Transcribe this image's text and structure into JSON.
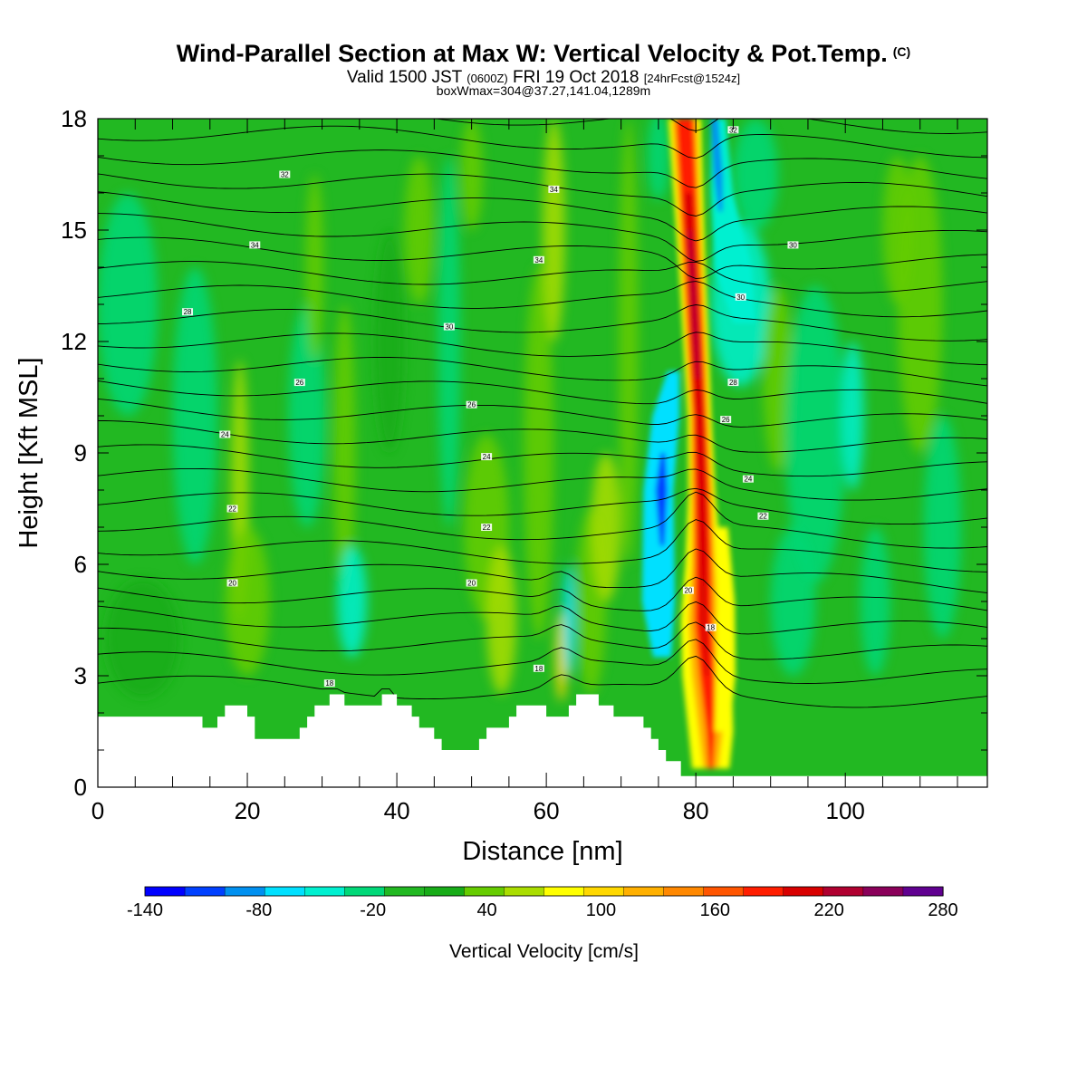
{
  "title": {
    "main": "Wind-Parallel Section at Max W: Vertical Velocity & Pot.Temp.",
    "copyright": "(C)",
    "valid_prefix": "Valid 1500 JST",
    "valid_utc": "(0600Z)",
    "valid_date": "FRI 19 Oct 2018",
    "forecast": "[24hrFcst@1524z]",
    "boxmax": "boxWmax=304@37.27,141.04,1289m"
  },
  "colorbar": {
    "label": "Vertical Velocity [cm/s]",
    "tick_labels": [
      "-140",
      "-80",
      "-20",
      "40",
      "100",
      "160",
      "220",
      "280"
    ],
    "levels": [
      -140,
      -120,
      -100,
      -80,
      -60,
      -40,
      -20,
      0,
      20,
      40,
      60,
      80,
      100,
      120,
      140,
      160,
      180,
      200,
      220,
      240,
      260,
      280
    ],
    "colors": [
      "#0000ff",
      "#0040ff",
      "#0090f0",
      "#00e0ff",
      "#00f0d0",
      "#00d878",
      "#22b822",
      "#18ac18",
      "#66cc00",
      "#aadd00",
      "#ffff00",
      "#ffd800",
      "#ffb000",
      "#ff8800",
      "#ff5500",
      "#ff1e00",
      "#d80000",
      "#b00030",
      "#8a005a",
      "#600090"
    ]
  },
  "chart_data": {
    "type": "heatmap",
    "xlabel": "Distance [nm]",
    "ylabel": "Height [Kft MSL]",
    "xlim": [
      0,
      119
    ],
    "ylim": [
      0,
      18
    ],
    "xticks": [
      "0",
      "20",
      "40",
      "60",
      "80",
      "100"
    ],
    "yticks": [
      "0",
      "3",
      "6",
      "9",
      "12",
      "15",
      "18"
    ],
    "shaded_field": "Vertical Velocity [cm/s]",
    "contour_field": "Potential temperature",
    "contour_labels": [
      "18",
      "18",
      "18",
      "20",
      "20",
      "20",
      "22",
      "22",
      "22",
      "24",
      "24",
      "24",
      "26",
      "26",
      "26",
      "28",
      "28",
      "30",
      "30",
      "34",
      "34",
      "30",
      "32",
      "34",
      "32"
    ],
    "terrain_profile_nm_kft": [
      [
        0,
        1.9
      ],
      [
        14,
        1.9
      ],
      [
        14,
        1.6
      ],
      [
        16,
        1.6
      ],
      [
        16,
        1.9
      ],
      [
        17,
        1.9
      ],
      [
        17,
        2.2
      ],
      [
        20,
        2.2
      ],
      [
        20,
        1.9
      ],
      [
        21,
        1.9
      ],
      [
        21,
        1.3
      ],
      [
        27,
        1.3
      ],
      [
        27,
        1.6
      ],
      [
        28,
        1.6
      ],
      [
        28,
        1.9
      ],
      [
        29,
        1.9
      ],
      [
        29,
        2.2
      ],
      [
        31,
        2.2
      ],
      [
        31,
        2.5
      ],
      [
        33,
        2.5
      ],
      [
        33,
        2.2
      ],
      [
        38,
        2.2
      ],
      [
        38,
        2.5
      ],
      [
        40,
        2.5
      ],
      [
        40,
        2.2
      ],
      [
        42,
        2.2
      ],
      [
        42,
        1.9
      ],
      [
        43,
        1.9
      ],
      [
        43,
        1.6
      ],
      [
        45,
        1.6
      ],
      [
        45,
        1.3
      ],
      [
        46,
        1.3
      ],
      [
        46,
        1.0
      ],
      [
        51,
        1.0
      ],
      [
        51,
        1.3
      ],
      [
        52,
        1.3
      ],
      [
        52,
        1.6
      ],
      [
        55,
        1.6
      ],
      [
        55,
        1.9
      ],
      [
        56,
        1.9
      ],
      [
        56,
        2.2
      ],
      [
        60,
        2.2
      ],
      [
        60,
        1.9
      ],
      [
        63,
        1.9
      ],
      [
        63,
        2.2
      ],
      [
        64,
        2.2
      ],
      [
        64,
        2.5
      ],
      [
        67,
        2.5
      ],
      [
        67,
        2.2
      ],
      [
        69,
        2.2
      ],
      [
        69,
        1.9
      ],
      [
        73,
        1.9
      ],
      [
        73,
        1.6
      ],
      [
        74,
        1.6
      ],
      [
        74,
        1.3
      ],
      [
        75,
        1.3
      ],
      [
        75,
        1.0
      ],
      [
        76,
        1.0
      ],
      [
        76,
        0.7
      ],
      [
        78,
        0.7
      ],
      [
        78,
        0.3
      ],
      [
        119,
        0.3
      ]
    ],
    "features": [
      {
        "name": "max updraft",
        "value_cm_s": 304,
        "x_nm": [
          78,
          83
        ],
        "y_kft": [
          0.5,
          18
        ]
      },
      {
        "name": "downdraft",
        "x_nm": [
          74,
          78
        ],
        "y_kft": [
          4,
          11
        ],
        "value_cm_s": -100
      },
      {
        "name": "downdraft aloft",
        "x_nm": [
          82,
          90
        ],
        "y_kft": [
          13,
          18
        ],
        "value_cm_s": -80
      }
    ]
  }
}
